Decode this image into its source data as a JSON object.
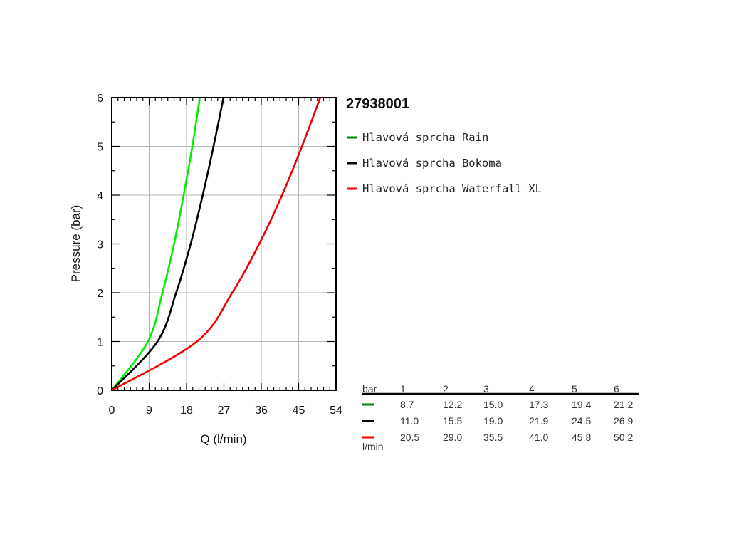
{
  "chart_data": {
    "type": "line",
    "title": "27938001",
    "xlabel": "Q (l/min)",
    "ylabel": "Pressure (bar)",
    "xlim": [
      0,
      54
    ],
    "ylim": [
      0,
      6
    ],
    "xticks": [
      "0",
      "9",
      "18",
      "27",
      "36",
      "45",
      "54"
    ],
    "yticks": [
      "0",
      "1",
      "2",
      "3",
      "4",
      "5",
      "6"
    ],
    "grid": true,
    "legend_position": "right",
    "series": [
      {
        "name": "Hlavová sprcha Rain",
        "color": "#00ee00",
        "legend_color": "#008000",
        "x": [
          8.7,
          12.2,
          15.0,
          17.3,
          19.4,
          21.2
        ],
        "y": [
          1,
          2,
          3,
          4,
          5,
          6
        ]
      },
      {
        "name": "Hlavová sprcha Bokoma",
        "color": "#000000",
        "legend_color": "#000000",
        "x": [
          11.0,
          15.5,
          19.0,
          21.9,
          24.5,
          26.9
        ],
        "y": [
          1,
          2,
          3,
          4,
          5,
          6
        ]
      },
      {
        "name": "Hlavová sprcha Waterfall XL",
        "color": "#ee0000",
        "legend_color": "#ee0000",
        "x": [
          20.5,
          29.0,
          35.5,
          41.0,
          45.8,
          50.2
        ],
        "y": [
          1,
          2,
          3,
          4,
          5,
          6
        ]
      }
    ]
  },
  "table": {
    "header_label": "bar",
    "unit_label": "l/min",
    "columns": [
      "1",
      "2",
      "3",
      "4",
      "5",
      "6"
    ],
    "rows": [
      [
        "8.7",
        "12.2",
        "15.0",
        "17.3",
        "19.4",
        "21.2"
      ],
      [
        "11.0",
        "15.5",
        "19.0",
        "21.9",
        "24.5",
        "26.9"
      ],
      [
        "20.5",
        "29.0",
        "35.5",
        "41.0",
        "45.8",
        "50.2"
      ]
    ]
  }
}
